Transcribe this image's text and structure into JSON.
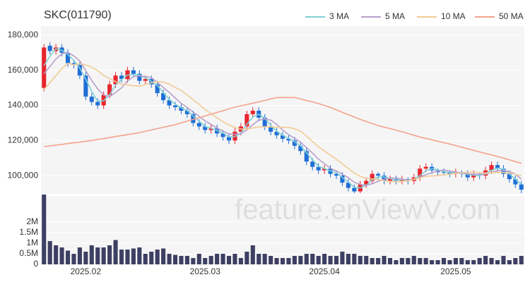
{
  "chart_data": {
    "type": "candlestick",
    "title": "SKC(011790)",
    "watermark": "feature.enViewV.com",
    "categories": [
      null,
      null,
      null,
      null,
      null,
      null,
      null,
      "2025.02",
      null,
      null,
      null,
      null,
      null,
      null,
      null,
      null,
      null,
      null,
      null,
      null,
      null,
      null,
      null,
      null,
      null,
      null,
      null,
      "2025.03",
      null,
      null,
      null,
      null,
      null,
      null,
      null,
      null,
      null,
      null,
      null,
      null,
      null,
      null,
      null,
      null,
      null,
      null,
      null,
      "2025.04",
      null,
      null,
      null,
      null,
      null,
      null,
      null,
      null,
      null,
      null,
      null,
      null,
      null,
      null,
      null,
      null,
      null,
      null,
      null,
      null,
      null,
      "2025.05",
      null,
      null,
      null,
      null,
      null,
      null,
      null,
      null,
      null,
      null,
      null
    ],
    "open": [
      150000,
      174000,
      171000,
      173000,
      170000,
      164000,
      163000,
      157000,
      145000,
      142000,
      140000,
      146000,
      152000,
      157000,
      155000,
      160000,
      158000,
      154000,
      155000,
      152000,
      147000,
      143000,
      140000,
      139000,
      137000,
      135000,
      130000,
      128000,
      126000,
      127000,
      124000,
      122000,
      120000,
      125000,
      128000,
      135000,
      137000,
      133000,
      128000,
      125000,
      123000,
      121000,
      120000,
      117000,
      114000,
      108000,
      105000,
      103000,
      104000,
      101000,
      100000,
      96000,
      93000,
      91000,
      95000,
      97000,
      101000,
      100000,
      97000,
      98000,
      97000,
      98000,
      97000,
      99000,
      104000,
      105000,
      103000,
      102000,
      102000,
      101000,
      102000,
      101000,
      99000,
      101000,
      100000,
      103000,
      106000,
      104000,
      101000,
      98000,
      95000
    ],
    "high": [
      175000,
      176000,
      175000,
      175000,
      172000,
      166000,
      165000,
      159000,
      147000,
      144000,
      148000,
      154000,
      159000,
      159000,
      162000,
      162000,
      160000,
      157000,
      157000,
      154000,
      149000,
      145000,
      142000,
      141000,
      139000,
      137000,
      132000,
      130000,
      129000,
      129000,
      126000,
      124000,
      127000,
      130000,
      137000,
      139000,
      139000,
      135000,
      130000,
      127000,
      125000,
      123000,
      122000,
      119000,
      116000,
      110000,
      107000,
      106000,
      106000,
      103000,
      102000,
      98000,
      95000,
      97000,
      99000,
      103000,
      102000,
      102000,
      100000,
      100000,
      100000,
      99000,
      101000,
      106000,
      107000,
      107000,
      104000,
      104000,
      103000,
      104000,
      103000,
      103000,
      103000,
      102000,
      105000,
      108000,
      108000,
      106000,
      103000,
      100000,
      97000
    ],
    "low": [
      148000,
      169000,
      169000,
      168000,
      162000,
      161000,
      155000,
      143000,
      140000,
      138000,
      138000,
      144000,
      150000,
      153000,
      153000,
      156000,
      152000,
      152000,
      150000,
      145000,
      141000,
      138000,
      137000,
      135000,
      133000,
      128000,
      126000,
      124000,
      124000,
      122000,
      120000,
      118000,
      118000,
      123000,
      126000,
      133000,
      131000,
      126000,
      123000,
      121000,
      119000,
      118000,
      115000,
      112000,
      106000,
      103000,
      101000,
      101000,
      99000,
      98000,
      94000,
      91000,
      90000,
      90000,
      93000,
      95000,
      98000,
      95000,
      95000,
      95000,
      95000,
      95000,
      95000,
      97000,
      102000,
      101000,
      100000,
      100000,
      99000,
      99000,
      99000,
      97000,
      97000,
      98000,
      98000,
      101000,
      102000,
      99000,
      96000,
      93000,
      90000
    ],
    "close": [
      173000,
      171000,
      173000,
      170000,
      164000,
      163000,
      157000,
      145000,
      142000,
      140000,
      146000,
      152000,
      157000,
      155000,
      160000,
      158000,
      154000,
      155000,
      152000,
      147000,
      143000,
      140000,
      139000,
      137000,
      135000,
      130000,
      128000,
      126000,
      127000,
      124000,
      122000,
      120000,
      125000,
      128000,
      135000,
      137000,
      133000,
      128000,
      125000,
      123000,
      121000,
      120000,
      117000,
      114000,
      108000,
      105000,
      103000,
      104000,
      101000,
      100000,
      96000,
      93000,
      91000,
      95000,
      97000,
      101000,
      100000,
      97000,
      98000,
      97000,
      98000,
      97000,
      99000,
      104000,
      105000,
      103000,
      102000,
      102000,
      101000,
      102000,
      101000,
      99000,
      101000,
      100000,
      103000,
      106000,
      104000,
      101000,
      98000,
      95000,
      92000
    ],
    "up_color": "#e8262d",
    "down_color": "#1f6fd6",
    "ylim": [
      89600,
      185200
    ],
    "yticks": [
      {
        "value": 100000,
        "label": "100,000"
      },
      {
        "value": 120000,
        "label": "120,000"
      },
      {
        "value": 140000,
        "label": "140,000"
      },
      {
        "value": 160000,
        "label": "160,000"
      },
      {
        "value": 180000,
        "label": "180,000"
      }
    ],
    "grid": true,
    "legend": "top-right",
    "series": [
      {
        "name": "3 MA",
        "color": "#7fd0d8",
        "values": [
          162700,
          168000,
          172300,
          171300,
          169000,
          165700,
          161300,
          155000,
          148000,
          142300,
          142700,
          146000,
          151700,
          154700,
          157300,
          157700,
          157300,
          155700,
          153700,
          151300,
          147300,
          143300,
          140700,
          138700,
          137000,
          134000,
          131000,
          128000,
          127000,
          125700,
          124300,
          122000,
          122300,
          124300,
          129300,
          133300,
          135000,
          132700,
          128700,
          125300,
          123000,
          121300,
          119300,
          117000,
          113000,
          109000,
          105300,
          104000,
          102700,
          101700,
          99000,
          96300,
          93300,
          93000,
          94300,
          97700,
          99300,
          99300,
          98300,
          97300,
          97700,
          97300,
          98000,
          100000,
          102700,
          104000,
          103300,
          102300,
          101700,
          101700,
          101300,
          100700,
          100300,
          100000,
          101300,
          103000,
          104300,
          103700,
          101000,
          98000,
          95000
        ]
      },
      {
        "name": "5 MA",
        "color": "#b79fcc",
        "values": [
          158000,
          162200,
          166400,
          169400,
          170200,
          168200,
          165400,
          159800,
          154200,
          149400,
          146000,
          145000,
          147400,
          150000,
          154000,
          156400,
          156800,
          156400,
          155800,
          153200,
          150200,
          147400,
          144200,
          141200,
          138800,
          136200,
          133800,
          131200,
          129200,
          127000,
          125400,
          123800,
          123600,
          123800,
          126000,
          129000,
          131600,
          132200,
          131600,
          129200,
          126000,
          123400,
          121200,
          119000,
          116000,
          112800,
          109400,
          106800,
          104200,
          102600,
          100800,
          98800,
          96200,
          95000,
          94400,
          95400,
          96800,
          98000,
          98600,
          98600,
          98000,
          97400,
          97800,
          99000,
          100600,
          101600,
          102600,
          103200,
          102600,
          102000,
          101600,
          101000,
          100800,
          100600,
          100800,
          101800,
          102800,
          102800,
          102400,
          100800,
          98000
        ]
      },
      {
        "name": "10 MA",
        "color": "#f2cb95",
        "values": [
          149000,
          153000,
          157000,
          161000,
          164000,
          163100,
          163800,
          163100,
          161800,
          159800,
          157100,
          155200,
          153600,
          152100,
          151700,
          151200,
          150900,
          151900,
          152900,
          153600,
          153300,
          152100,
          150300,
          148500,
          146000,
          143200,
          140600,
          137700,
          135200,
          132900,
          130800,
          128800,
          127400,
          126500,
          126500,
          127200,
          127700,
          127900,
          127700,
          127600,
          127500,
          127500,
          126700,
          125300,
          122600,
          119400,
          116400,
          114000,
          111600,
          109300,
          106800,
          104100,
          101500,
          99600,
          98500,
          98100,
          97800,
          97100,
          96800,
          96500,
          96700,
          97100,
          97900,
          98800,
          99600,
          99800,
          100000,
          100500,
          100800,
          101300,
          101600,
          101800,
          102000,
          101600,
          101400,
          101700,
          101900,
          101800,
          101500,
          100800,
          99900
        ]
      },
      {
        "name": "50 MA",
        "color": "#f5a28c",
        "values": [
          116500,
          116900,
          117400,
          117800,
          118300,
          118700,
          119100,
          119600,
          120000,
          120600,
          121100,
          121700,
          122300,
          122800,
          123400,
          123900,
          124500,
          125300,
          126000,
          126800,
          127500,
          128300,
          129000,
          130000,
          131000,
          132000,
          133000,
          134000,
          135000,
          136000,
          137000,
          138000,
          139000,
          139800,
          140500,
          141300,
          142000,
          142800,
          143700,
          144500,
          144500,
          144500,
          144500,
          143700,
          142800,
          142000,
          141000,
          140000,
          138800,
          137500,
          136100,
          134800,
          133400,
          132000,
          130800,
          129700,
          128500,
          127600,
          126800,
          125900,
          125000,
          124000,
          123000,
          122000,
          121200,
          120400,
          119600,
          118800,
          118000,
          117100,
          116200,
          115300,
          114400,
          113500,
          112600,
          111800,
          110900,
          110000,
          109000,
          108000,
          107000
        ]
      }
    ],
    "volume": {
      "color": "#3d3f63",
      "values": [
        3300000,
        1100000,
        900000,
        800000,
        650000,
        500000,
        800000,
        600000,
        900000,
        800000,
        800000,
        900000,
        1150000,
        700000,
        700000,
        750000,
        800000,
        500000,
        600000,
        700000,
        750000,
        500000,
        450000,
        400000,
        400000,
        300000,
        500000,
        300000,
        400000,
        500000,
        500000,
        400000,
        500000,
        300000,
        600000,
        900000,
        500000,
        500000,
        400000,
        300000,
        300000,
        300000,
        400000,
        400000,
        500000,
        500000,
        400000,
        500000,
        400000,
        400000,
        600000,
        500000,
        500000,
        400000,
        400000,
        300000,
        300000,
        400000,
        300000,
        200000,
        300000,
        300000,
        400000,
        300000,
        300000,
        200000,
        200000,
        300000,
        200000,
        300000,
        300000,
        200000,
        200000,
        300000,
        400000,
        300000,
        200000,
        400000,
        200000,
        300000,
        400000
      ],
      "ylim": [
        0,
        3230000
      ],
      "yticks": [
        0,
        {
          "value": 500000,
          "label": "0.5M"
        },
        {
          "value": 1000000,
          "label": "1M"
        },
        {
          "value": 1500000,
          "label": "1.5M"
        },
        {
          "value": 2000000,
          "label": "2M"
        }
      ]
    }
  }
}
